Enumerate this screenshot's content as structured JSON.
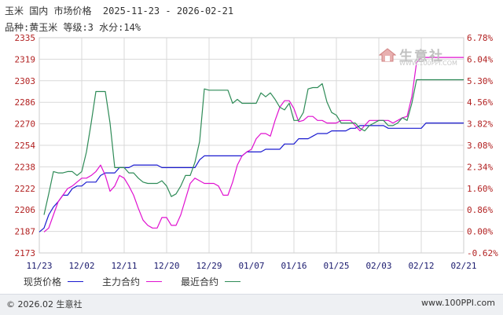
{
  "header": {
    "title_line": "玉米 国内 市场价格  2025-11-23 - 2026-02-21",
    "subtitle_line": "品种:黄玉米 等级:3 水分:14%"
  },
  "watermark": {
    "text": "生意社",
    "url": "WWW.100PPI.COM"
  },
  "footer": {
    "left": "© 2026.02 生意社",
    "right": "www.100PPI.com"
  },
  "colors": {
    "spot": "#1a1ad0",
    "main_contract": "#e010d0",
    "latest_contract": "#2e8b57",
    "left_axis": "#b22222",
    "right_axis": "#b22222",
    "grid": "#d9d9d9",
    "frame": "#cccccc"
  },
  "chart_data": {
    "type": "line",
    "y_left_ticks": [
      "2335",
      "2319",
      "2303",
      "2286",
      "2270",
      "2254",
      "2238",
      "2222",
      "2206",
      "2187",
      "2173"
    ],
    "y_right_ticks": [
      "6.78%",
      "6.04%",
      "5.30%",
      "4.56%",
      "3.82%",
      "3.08%",
      "2.34%",
      "1.60%",
      "0.86%",
      "0.00%",
      "-0.62%"
    ],
    "ylim": [
      2171,
      2335
    ],
    "x_ticks": [
      "11/23",
      "12/02",
      "12/11",
      "12/20",
      "12/29",
      "01/07",
      "01/16",
      "01/25",
      "02/03",
      "02/12",
      "02/21"
    ],
    "grid": true,
    "legend": [
      "现货价格",
      "主力合约",
      "最近合约"
    ],
    "series": [
      {
        "name": "现货价格",
        "color": "#1a1ad0",
        "points": [
          [
            0,
            2187
          ],
          [
            1,
            2190
          ],
          [
            2,
            2200
          ],
          [
            3,
            2206
          ],
          [
            4,
            2210
          ],
          [
            5,
            2215
          ],
          [
            6,
            2215
          ],
          [
            7,
            2220
          ],
          [
            8,
            2222
          ],
          [
            9,
            2222
          ],
          [
            10,
            2225
          ],
          [
            11,
            2225
          ],
          [
            12,
            2225
          ],
          [
            13,
            2230
          ],
          [
            14,
            2232
          ],
          [
            15,
            2232
          ],
          [
            16,
            2232
          ],
          [
            17,
            2236
          ],
          [
            18,
            2236
          ],
          [
            19,
            2236
          ],
          [
            20,
            2238
          ],
          [
            21,
            2238
          ],
          [
            22,
            2238
          ],
          [
            23,
            2238
          ],
          [
            24,
            2238
          ],
          [
            25,
            2238
          ],
          [
            26,
            2236
          ],
          [
            27,
            2236
          ],
          [
            28,
            2236
          ],
          [
            29,
            2236
          ],
          [
            30,
            2236
          ],
          [
            31,
            2236
          ],
          [
            32,
            2236
          ],
          [
            33,
            2236
          ],
          [
            34,
            2242
          ],
          [
            35,
            2245
          ],
          [
            36,
            2245
          ],
          [
            37,
            2245
          ],
          [
            38,
            2245
          ],
          [
            39,
            2245
          ],
          [
            40,
            2245
          ],
          [
            41,
            2245
          ],
          [
            42,
            2245
          ],
          [
            43,
            2245
          ],
          [
            44,
            2248
          ],
          [
            45,
            2248
          ],
          [
            46,
            2248
          ],
          [
            47,
            2248
          ],
          [
            48,
            2250
          ],
          [
            49,
            2250
          ],
          [
            50,
            2250
          ],
          [
            51,
            2250
          ],
          [
            52,
            2254
          ],
          [
            53,
            2254
          ],
          [
            54,
            2254
          ],
          [
            55,
            2258
          ],
          [
            56,
            2258
          ],
          [
            57,
            2258
          ],
          [
            58,
            2260
          ],
          [
            59,
            2262
          ],
          [
            60,
            2262
          ],
          [
            61,
            2262
          ],
          [
            62,
            2264
          ],
          [
            63,
            2264
          ],
          [
            64,
            2264
          ],
          [
            65,
            2264
          ],
          [
            66,
            2266
          ],
          [
            67,
            2266
          ],
          [
            68,
            2268
          ],
          [
            69,
            2268
          ],
          [
            70,
            2268
          ],
          [
            71,
            2268
          ],
          [
            72,
            2268
          ],
          [
            73,
            2268
          ],
          [
            74,
            2266
          ],
          [
            75,
            2266
          ],
          [
            76,
            2266
          ],
          [
            77,
            2266
          ],
          [
            78,
            2266
          ],
          [
            79,
            2266
          ],
          [
            80,
            2266
          ],
          [
            81,
            2266
          ],
          [
            82,
            2270
          ],
          [
            83,
            2270
          ],
          [
            84,
            2270
          ],
          [
            85,
            2270
          ],
          [
            86,
            2270
          ],
          [
            87,
            2270
          ],
          [
            88,
            2270
          ],
          [
            89,
            2270
          ],
          [
            90,
            2270
          ]
        ]
      },
      {
        "name": "主力合约",
        "color": "#e010d0",
        "points": [
          [
            1,
            2187
          ],
          [
            2,
            2190
          ],
          [
            3,
            2200
          ],
          [
            4,
            2210
          ],
          [
            5,
            2215
          ],
          [
            6,
            2220
          ],
          [
            7,
            2222
          ],
          [
            8,
            2225
          ],
          [
            9,
            2228
          ],
          [
            10,
            2228
          ],
          [
            11,
            2230
          ],
          [
            12,
            2233
          ],
          [
            13,
            2238
          ],
          [
            14,
            2230
          ],
          [
            15,
            2218
          ],
          [
            16,
            2222
          ],
          [
            17,
            2230
          ],
          [
            18,
            2228
          ],
          [
            19,
            2222
          ],
          [
            20,
            2215
          ],
          [
            21,
            2205
          ],
          [
            22,
            2196
          ],
          [
            23,
            2192
          ],
          [
            24,
            2190
          ],
          [
            25,
            2190
          ],
          [
            26,
            2198
          ],
          [
            27,
            2198
          ],
          [
            28,
            2192
          ],
          [
            29,
            2192
          ],
          [
            30,
            2200
          ],
          [
            31,
            2212
          ],
          [
            32,
            2224
          ],
          [
            33,
            2228
          ],
          [
            34,
            2226
          ],
          [
            35,
            2224
          ],
          [
            36,
            2224
          ],
          [
            37,
            2224
          ],
          [
            38,
            2222
          ],
          [
            39,
            2215
          ],
          [
            40,
            2215
          ],
          [
            41,
            2225
          ],
          [
            42,
            2238
          ],
          [
            43,
            2245
          ],
          [
            44,
            2248
          ],
          [
            45,
            2250
          ],
          [
            46,
            2258
          ],
          [
            47,
            2262
          ],
          [
            48,
            2262
          ],
          [
            49,
            2260
          ],
          [
            50,
            2272
          ],
          [
            51,
            2282
          ],
          [
            52,
            2287
          ],
          [
            53,
            2287
          ],
          [
            54,
            2281
          ],
          [
            55,
            2271
          ],
          [
            56,
            2272
          ],
          [
            57,
            2275
          ],
          [
            58,
            2275
          ],
          [
            59,
            2272
          ],
          [
            60,
            2272
          ],
          [
            61,
            2270
          ],
          [
            62,
            2270
          ],
          [
            63,
            2270
          ],
          [
            64,
            2272
          ],
          [
            65,
            2272
          ],
          [
            66,
            2272
          ],
          [
            67,
            2268
          ],
          [
            68,
            2264
          ],
          [
            69,
            2268
          ],
          [
            70,
            2272
          ],
          [
            71,
            2272
          ],
          [
            72,
            2272
          ],
          [
            73,
            2272
          ],
          [
            74,
            2272
          ],
          [
            75,
            2270
          ],
          [
            76,
            2272
          ],
          [
            77,
            2274
          ],
          [
            78,
            2275
          ],
          [
            79,
            2290
          ],
          [
            80,
            2316
          ],
          [
            81,
            2320
          ],
          [
            82,
            2320
          ],
          [
            83,
            2320
          ],
          [
            84,
            2320
          ],
          [
            85,
            2320
          ],
          [
            86,
            2320
          ],
          [
            87,
            2320
          ],
          [
            88,
            2320
          ],
          [
            89,
            2320
          ],
          [
            90,
            2320
          ]
        ]
      },
      {
        "name": "最近合约",
        "color": "#2e8b57",
        "points": [
          [
            1,
            2200
          ],
          [
            2,
            2216
          ],
          [
            3,
            2233
          ],
          [
            4,
            2232
          ],
          [
            5,
            2232
          ],
          [
            6,
            2233
          ],
          [
            7,
            2233
          ],
          [
            8,
            2230
          ],
          [
            9,
            2233
          ],
          [
            10,
            2248
          ],
          [
            11,
            2270
          ],
          [
            12,
            2294
          ],
          [
            13,
            2294
          ],
          [
            14,
            2294
          ],
          [
            15,
            2270
          ],
          [
            16,
            2236
          ],
          [
            17,
            2236
          ],
          [
            18,
            2236
          ],
          [
            19,
            2232
          ],
          [
            20,
            2232
          ],
          [
            21,
            2228
          ],
          [
            22,
            2225
          ],
          [
            23,
            2224
          ],
          [
            24,
            2224
          ],
          [
            25,
            2224
          ],
          [
            26,
            2226
          ],
          [
            27,
            2222
          ],
          [
            28,
            2214
          ],
          [
            29,
            2216
          ],
          [
            30,
            2222
          ],
          [
            31,
            2230
          ],
          [
            32,
            2230
          ],
          [
            33,
            2240
          ],
          [
            34,
            2256
          ],
          [
            35,
            2296
          ],
          [
            36,
            2295
          ],
          [
            37,
            2295
          ],
          [
            38,
            2295
          ],
          [
            39,
            2295
          ],
          [
            40,
            2295
          ],
          [
            41,
            2285
          ],
          [
            42,
            2288
          ],
          [
            43,
            2285
          ],
          [
            44,
            2285
          ],
          [
            45,
            2285
          ],
          [
            46,
            2285
          ],
          [
            47,
            2293
          ],
          [
            48,
            2290
          ],
          [
            49,
            2293
          ],
          [
            50,
            2288
          ],
          [
            51,
            2282
          ],
          [
            52,
            2280
          ],
          [
            53,
            2285
          ],
          [
            54,
            2272
          ],
          [
            55,
            2272
          ],
          [
            56,
            2278
          ],
          [
            57,
            2296
          ],
          [
            58,
            2297
          ],
          [
            59,
            2297
          ],
          [
            60,
            2300
          ],
          [
            61,
            2286
          ],
          [
            62,
            2278
          ],
          [
            63,
            2276
          ],
          [
            64,
            2270
          ],
          [
            65,
            2270
          ],
          [
            66,
            2270
          ],
          [
            67,
            2270
          ],
          [
            68,
            2266
          ],
          [
            69,
            2264
          ],
          [
            70,
            2268
          ],
          [
            71,
            2270
          ],
          [
            72,
            2272
          ],
          [
            73,
            2272
          ],
          [
            74,
            2268
          ],
          [
            75,
            2268
          ],
          [
            76,
            2270
          ],
          [
            77,
            2274
          ],
          [
            78,
            2272
          ],
          [
            79,
            2285
          ],
          [
            80,
            2303
          ],
          [
            81,
            2303
          ],
          [
            82,
            2303
          ],
          [
            83,
            2303
          ],
          [
            84,
            2303
          ],
          [
            85,
            2303
          ],
          [
            86,
            2303
          ],
          [
            87,
            2303
          ],
          [
            88,
            2303
          ],
          [
            89,
            2303
          ],
          [
            90,
            2303
          ]
        ]
      }
    ]
  }
}
